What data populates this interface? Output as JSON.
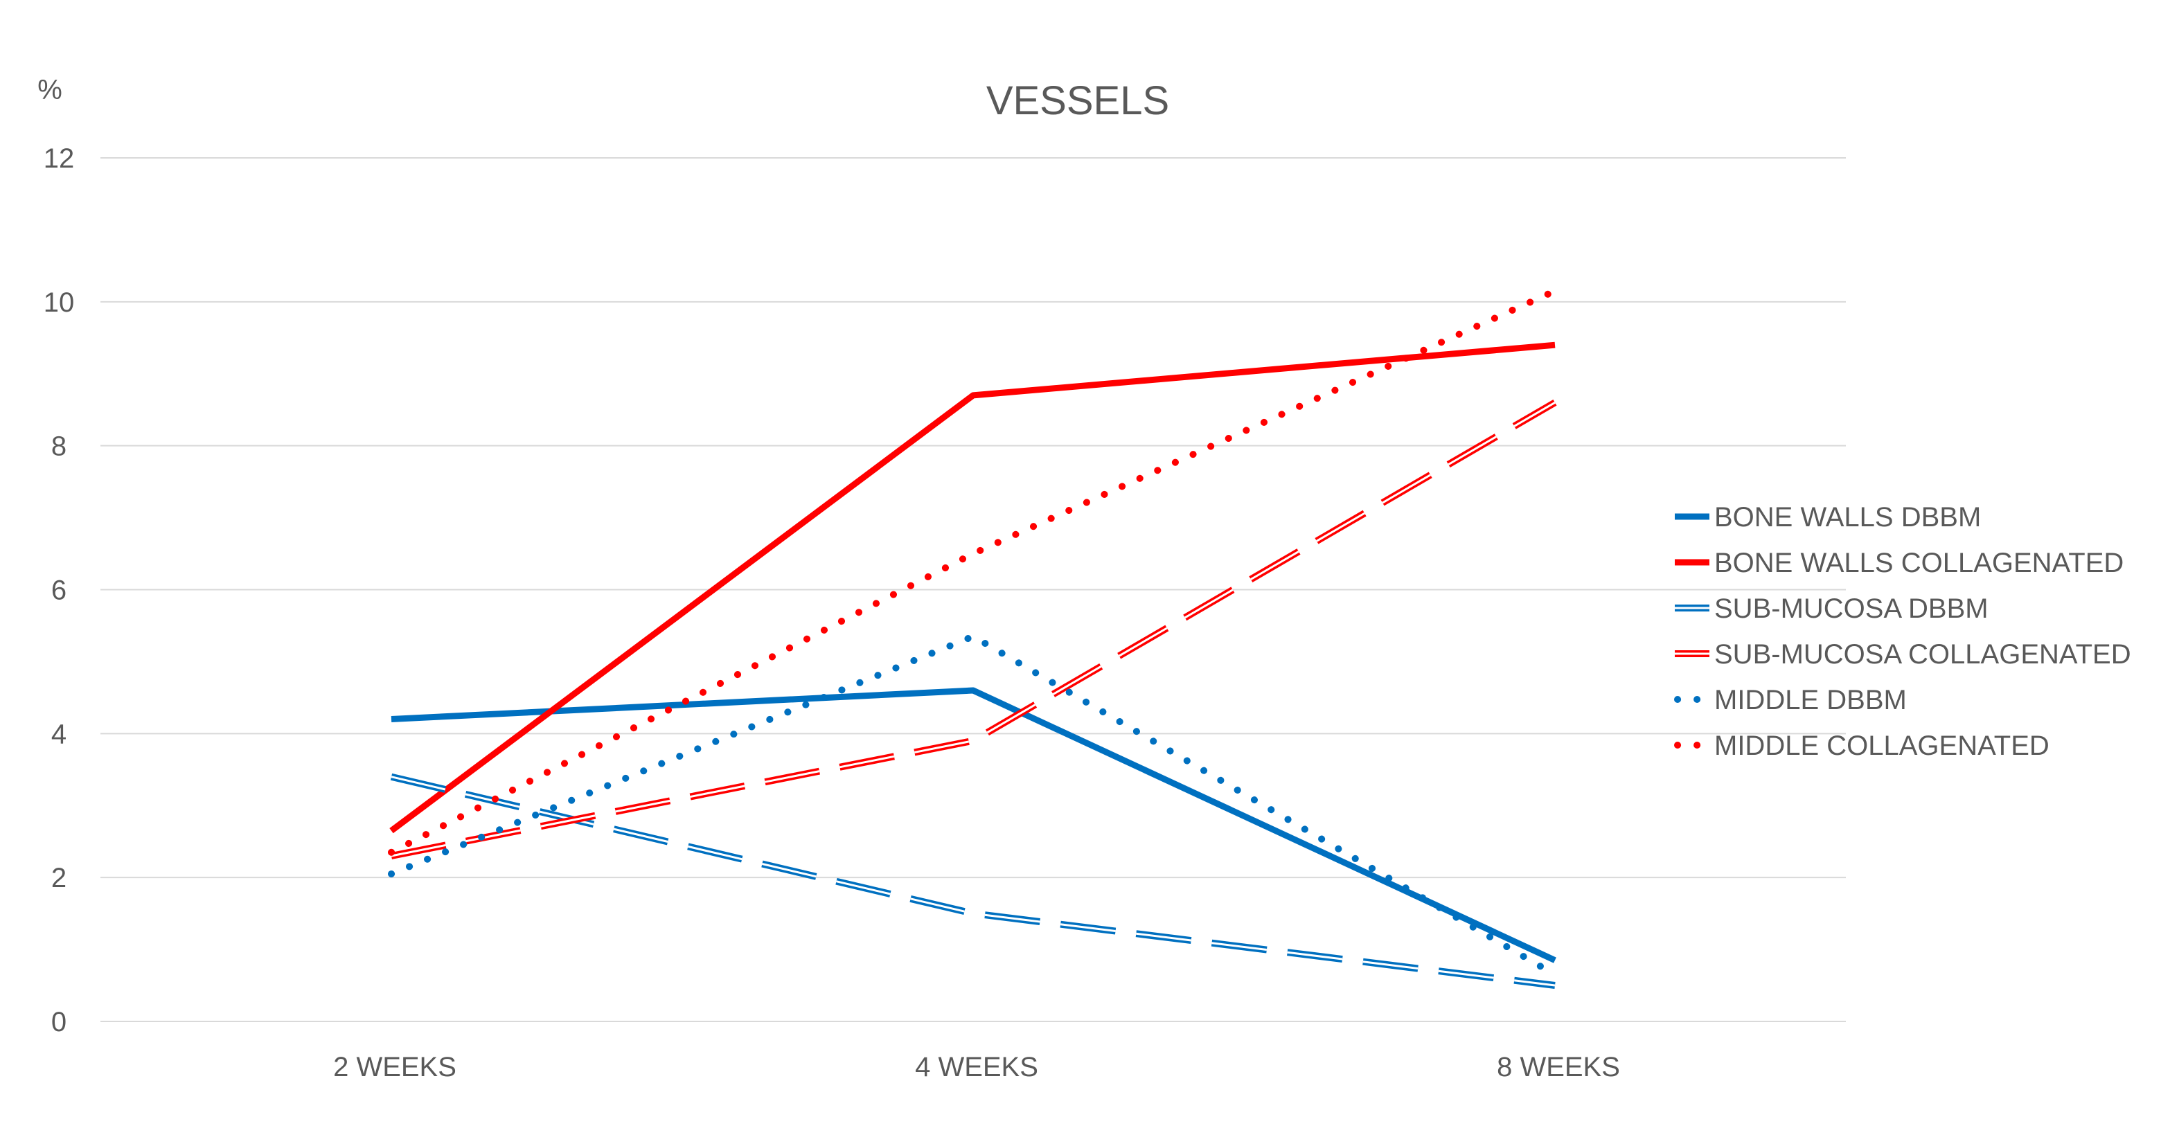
{
  "chart_data": {
    "type": "line",
    "title": "VESSELS",
    "ylabel": "%",
    "xlabel": "",
    "categories": [
      "2 WEEKS",
      "4 WEEKS",
      "8 WEEKS"
    ],
    "ylim": [
      0,
      12
    ],
    "yticks": [
      0,
      2,
      4,
      6,
      8,
      10,
      12
    ],
    "grid": true,
    "legend_position": "right",
    "series": [
      {
        "name": "BONE WALLS DBBM",
        "values": [
          4.2,
          4.6,
          0.85
        ],
        "color": "#0070C0",
        "style": "solid"
      },
      {
        "name": "BONE WALLS COLLAGENATED",
        "values": [
          2.65,
          8.7,
          9.4
        ],
        "color": "#FF0000",
        "style": "solid"
      },
      {
        "name": "SUB-MUCOSA DBBM",
        "values": [
          3.4,
          1.5,
          0.5
        ],
        "color": "#0070C0",
        "style": "double-dash"
      },
      {
        "name": "SUB-MUCOSA COLLAGENATED",
        "values": [
          2.3,
          3.9,
          8.6
        ],
        "color": "#FF0000",
        "style": "double-dash"
      },
      {
        "name": "MIDDLE DBBM",
        "values": [
          2.05,
          5.35,
          0.65
        ],
        "color": "#0070C0",
        "style": "dotted"
      },
      {
        "name": "MIDDLE COLLAGENATED",
        "values": [
          2.35,
          6.5,
          10.15
        ],
        "color": "#FF0000",
        "style": "dotted"
      }
    ]
  }
}
